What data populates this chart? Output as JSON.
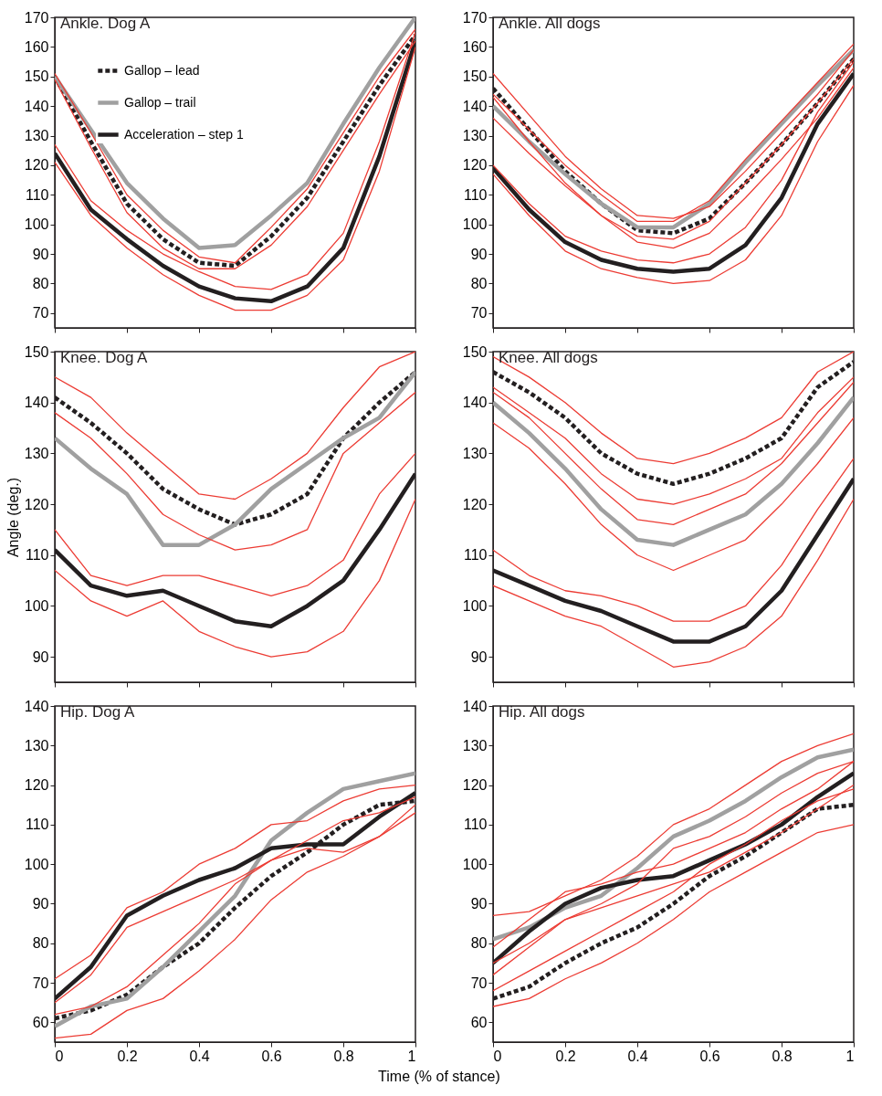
{
  "chart_data": [
    {
      "type": "line",
      "title": "Ankle. Dog A",
      "x": [
        0,
        0.1,
        0.2,
        0.3,
        0.4,
        0.5,
        0.6,
        0.7,
        0.8,
        0.9,
        1
      ],
      "xlim": [
        0,
        1
      ],
      "xticks": [
        0,
        0.2,
        0.4,
        0.6,
        0.8,
        1
      ],
      "ylim": [
        65,
        170
      ],
      "yticks": [
        70,
        80,
        90,
        100,
        110,
        120,
        130,
        140,
        150,
        160,
        170
      ],
      "tick_labels": "y",
      "grid": false,
      "legend": "top left",
      "marker": "none",
      "series": [
        {
          "color": "#ec3b33",
          "values": [
            151,
            131,
            110,
            98,
            89,
            87,
            99,
            112,
            131,
            150,
            166
          ]
        },
        {
          "color": "#ec3b33",
          "values": [
            149,
            126,
            104,
            92,
            85,
            85,
            93,
            106,
            125,
            144,
            162
          ]
        },
        {
          "color": "#ec3b33",
          "values": [
            127,
            108,
            98,
            90,
            84,
            79,
            78,
            83,
            97,
            128,
            165
          ]
        },
        {
          "color": "#ec3b33",
          "values": [
            121,
            103,
            92,
            83,
            76,
            71,
            71,
            76,
            88,
            118,
            160
          ]
        },
        {
          "name": "Gallop – lead",
          "color": "#231f20",
          "line_style": "dashed",
          "values": [
            150,
            128,
            107,
            95,
            87,
            86,
            96,
            109,
            128,
            147,
            164
          ]
        },
        {
          "name": "Gallop – trail",
          "color": "#a0a0a0",
          "line_style": "solid",
          "values": [
            150,
            132,
            114,
            102,
            92,
            93,
            103,
            114,
            134,
            153,
            170
          ]
        },
        {
          "name": "Acceleration – step 1",
          "color": "#231f20",
          "line_style": "solid",
          "values": [
            124,
            105,
            95,
            86,
            79,
            75,
            74,
            79,
            92,
            123,
            162
          ]
        }
      ]
    },
    {
      "type": "line",
      "title": "Ankle. All dogs",
      "x": [
        0,
        0.1,
        0.2,
        0.3,
        0.4,
        0.5,
        0.6,
        0.7,
        0.8,
        0.9,
        1
      ],
      "xlim": [
        0,
        1
      ],
      "xticks": [
        0,
        0.2,
        0.4,
        0.6,
        0.8,
        1
      ],
      "ylim": [
        65,
        170
      ],
      "yticks": [
        70,
        80,
        90,
        100,
        110,
        120,
        130,
        140,
        150,
        160,
        170
      ],
      "tick_labels": "y",
      "grid": false,
      "marker": "none",
      "series": [
        {
          "color": "#ec3b33",
          "values": [
            151,
            137,
            123,
            112,
            103,
            102,
            106,
            118,
            131,
            144,
            159
          ]
        },
        {
          "color": "#ec3b33",
          "values": [
            143,
            128,
            114,
            103,
            94,
            92,
            97,
            109,
            122,
            136,
            153
          ]
        },
        {
          "color": "#ec3b33",
          "values": [
            144,
            132,
            120,
            110,
            101,
            101,
            108,
            122,
            135,
            148,
            161
          ]
        },
        {
          "color": "#ec3b33",
          "values": [
            136,
            124,
            113,
            103,
            96,
            95,
            101,
            114,
            127,
            141,
            156
          ]
        },
        {
          "color": "#ec3b33",
          "values": [
            120,
            107,
            96,
            91,
            88,
            87,
            90,
            99,
            115,
            138,
            155
          ]
        },
        {
          "color": "#ec3b33",
          "values": [
            117,
            103,
            91,
            85,
            82,
            80,
            81,
            88,
            103,
            128,
            147
          ]
        },
        {
          "color": "#231f20",
          "line_style": "dashed",
          "values": [
            146,
            132,
            118,
            107,
            98,
            97,
            102,
            114,
            127,
            141,
            156
          ]
        },
        {
          "color": "#a0a0a0",
          "line_style": "solid",
          "values": [
            140,
            128,
            117,
            107,
            99,
            99,
            107,
            121,
            134,
            147,
            159
          ]
        },
        {
          "color": "#231f20",
          "line_style": "solid",
          "values": [
            119,
            105,
            94,
            88,
            85,
            84,
            85,
            93,
            109,
            134,
            151
          ]
        }
      ]
    },
    {
      "type": "line",
      "title": "Knee. Dog A",
      "ylabel": "Angle (deg.)",
      "x": [
        0,
        0.1,
        0.2,
        0.3,
        0.4,
        0.5,
        0.6,
        0.7,
        0.8,
        0.9,
        1
      ],
      "xlim": [
        0,
        1
      ],
      "xticks": [
        0,
        0.2,
        0.4,
        0.6,
        0.8,
        1
      ],
      "ylim": [
        85,
        150
      ],
      "yticks": [
        90,
        100,
        110,
        120,
        130,
        140,
        150
      ],
      "tick_labels": "y",
      "grid": false,
      "marker": "none",
      "series": [
        {
          "color": "#ec3b33",
          "values": [
            145,
            141,
            134,
            128,
            122,
            121,
            125,
            130,
            139,
            147,
            150
          ]
        },
        {
          "color": "#ec3b33",
          "values": [
            138,
            133,
            126,
            118,
            114,
            111,
            112,
            115,
            130,
            136,
            142
          ]
        },
        {
          "color": "#ec3b33",
          "values": [
            115,
            106,
            104,
            106,
            106,
            104,
            102,
            104,
            109,
            122,
            130
          ]
        },
        {
          "color": "#ec3b33",
          "values": [
            107,
            101,
            98,
            101,
            95,
            92,
            90,
            91,
            95,
            105,
            121
          ]
        },
        {
          "color": "#231f20",
          "line_style": "dashed",
          "values": [
            141,
            136,
            130,
            123,
            119,
            116,
            118,
            122,
            133,
            140,
            146
          ]
        },
        {
          "color": "#a0a0a0",
          "line_style": "solid",
          "values": [
            133,
            127,
            122,
            112,
            112,
            116,
            123,
            128,
            133,
            137,
            146
          ]
        },
        {
          "color": "#231f20",
          "line_style": "solid",
          "values": [
            111,
            104,
            102,
            103,
            100,
            97,
            96,
            100,
            105,
            115,
            126
          ]
        }
      ]
    },
    {
      "type": "line",
      "title": "Knee. All dogs",
      "x": [
        0,
        0.1,
        0.2,
        0.3,
        0.4,
        0.5,
        0.6,
        0.7,
        0.8,
        0.9,
        1
      ],
      "xlim": [
        0,
        1
      ],
      "xticks": [
        0,
        0.2,
        0.4,
        0.6,
        0.8,
        1
      ],
      "ylim": [
        85,
        150
      ],
      "yticks": [
        90,
        100,
        110,
        120,
        130,
        140,
        150
      ],
      "tick_labels": "y",
      "grid": false,
      "marker": "none",
      "series": [
        {
          "color": "#ec3b33",
          "values": [
            149,
            145,
            140,
            134,
            129,
            128,
            130,
            133,
            137,
            146,
            150
          ]
        },
        {
          "color": "#ec3b33",
          "values": [
            143,
            138,
            133,
            126,
            121,
            120,
            122,
            125,
            129,
            138,
            145
          ]
        },
        {
          "color": "#ec3b33",
          "values": [
            142,
            137,
            130,
            123,
            117,
            116,
            119,
            122,
            128,
            136,
            144
          ]
        },
        {
          "color": "#ec3b33",
          "values": [
            136,
            131,
            124,
            116,
            110,
            107,
            110,
            113,
            120,
            128,
            137
          ]
        },
        {
          "color": "#ec3b33",
          "values": [
            111,
            106,
            103,
            102,
            100,
            97,
            97,
            100,
            108,
            119,
            129
          ]
        },
        {
          "color": "#ec3b33",
          "values": [
            104,
            101,
            98,
            96,
            92,
            88,
            89,
            92,
            98,
            109,
            121
          ]
        },
        {
          "color": "#231f20",
          "line_style": "dashed",
          "values": [
            146,
            142,
            137,
            130,
            126,
            124,
            126,
            129,
            133,
            143,
            148
          ]
        },
        {
          "color": "#a0a0a0",
          "line_style": "solid",
          "values": [
            140,
            134,
            127,
            119,
            113,
            112,
            115,
            118,
            124,
            132,
            141
          ]
        },
        {
          "color": "#231f20",
          "line_style": "solid",
          "values": [
            107,
            104,
            101,
            99,
            96,
            93,
            93,
            96,
            103,
            114,
            125
          ]
        }
      ]
    },
    {
      "type": "line",
      "title": "Hip. Dog A",
      "xlabel": "Time (% of stance)",
      "x": [
        0,
        0.1,
        0.2,
        0.3,
        0.4,
        0.5,
        0.6,
        0.7,
        0.8,
        0.9,
        1
      ],
      "xlim": [
        0,
        1
      ],
      "xticks": [
        0,
        0.2,
        0.4,
        0.6,
        0.8,
        1
      ],
      "ylim": [
        55,
        140
      ],
      "yticks": [
        60,
        70,
        80,
        90,
        100,
        110,
        120,
        130,
        140
      ],
      "grid": false,
      "marker": "none",
      "series": [
        {
          "color": "#ec3b33",
          "values": [
            71,
            77,
            89,
            93,
            100,
            104,
            110,
            111,
            116,
            119,
            120
          ]
        },
        {
          "color": "#ec3b33",
          "values": [
            65,
            72,
            84,
            88,
            92,
            96,
            101,
            104,
            103,
            107,
            115
          ]
        },
        {
          "color": "#ec3b33",
          "values": [
            62,
            64,
            69,
            77,
            85,
            95,
            101,
            106,
            111,
            113,
            117
          ]
        },
        {
          "color": "#ec3b33",
          "values": [
            56,
            57,
            63,
            66,
            73,
            81,
            91,
            98,
            102,
            107,
            113
          ]
        },
        {
          "color": "#231f20",
          "line_style": "dashed",
          "values": [
            61,
            63,
            67,
            74,
            80,
            89,
            97,
            103,
            110,
            115,
            116
          ]
        },
        {
          "color": "#a0a0a0",
          "line_style": "solid",
          "values": [
            59,
            64,
            66,
            74,
            83,
            92,
            106,
            113,
            119,
            121,
            123
          ]
        },
        {
          "color": "#231f20",
          "line_style": "solid",
          "values": [
            66,
            74,
            87,
            92,
            96,
            99,
            104,
            105,
            105,
            112,
            118
          ]
        }
      ]
    },
    {
      "type": "line",
      "title": "Hip. All dogs",
      "x": [
        0,
        0.1,
        0.2,
        0.3,
        0.4,
        0.5,
        0.6,
        0.7,
        0.8,
        0.9,
        1
      ],
      "xlim": [
        0,
        1
      ],
      "xticks": [
        0,
        0.2,
        0.4,
        0.6,
        0.8,
        1
      ],
      "ylim": [
        55,
        140
      ],
      "yticks": [
        60,
        70,
        80,
        90,
        100,
        110,
        120,
        130,
        140
      ],
      "grid": false,
      "marker": "none",
      "series": [
        {
          "color": "#ec3b33",
          "values": [
            87,
            88,
            92,
            96,
            102,
            110,
            114,
            120,
            126,
            130,
            133
          ]
        },
        {
          "color": "#ec3b33",
          "values": [
            75,
            80,
            86,
            90,
            95,
            104,
            107,
            112,
            118,
            123,
            126
          ]
        },
        {
          "color": "#ec3b33",
          "values": [
            79,
            86,
            93,
            95,
            98,
            100,
            104,
            108,
            114,
            119,
            126
          ]
        },
        {
          "color": "#ec3b33",
          "values": [
            72,
            79,
            86,
            89,
            92,
            95,
            98,
            103,
            108,
            114,
            120
          ]
        },
        {
          "color": "#ec3b33",
          "values": [
            68,
            73,
            78,
            83,
            88,
            93,
            100,
            105,
            111,
            116,
            119
          ]
        },
        {
          "color": "#ec3b33",
          "values": [
            64,
            66,
            71,
            75,
            80,
            86,
            93,
            98,
            103,
            108,
            110
          ]
        },
        {
          "color": "#231f20",
          "line_style": "dashed",
          "values": [
            66,
            69,
            75,
            80,
            84,
            90,
            97,
            102,
            108,
            114,
            115
          ]
        },
        {
          "color": "#a0a0a0",
          "line_style": "solid",
          "values": [
            81,
            84,
            89,
            92,
            99,
            107,
            111,
            116,
            122,
            127,
            129
          ]
        },
        {
          "color": "#231f20",
          "line_style": "solid",
          "values": [
            75,
            83,
            90,
            94,
            96,
            97,
            101,
            105,
            110,
            117,
            123
          ]
        }
      ]
    }
  ]
}
